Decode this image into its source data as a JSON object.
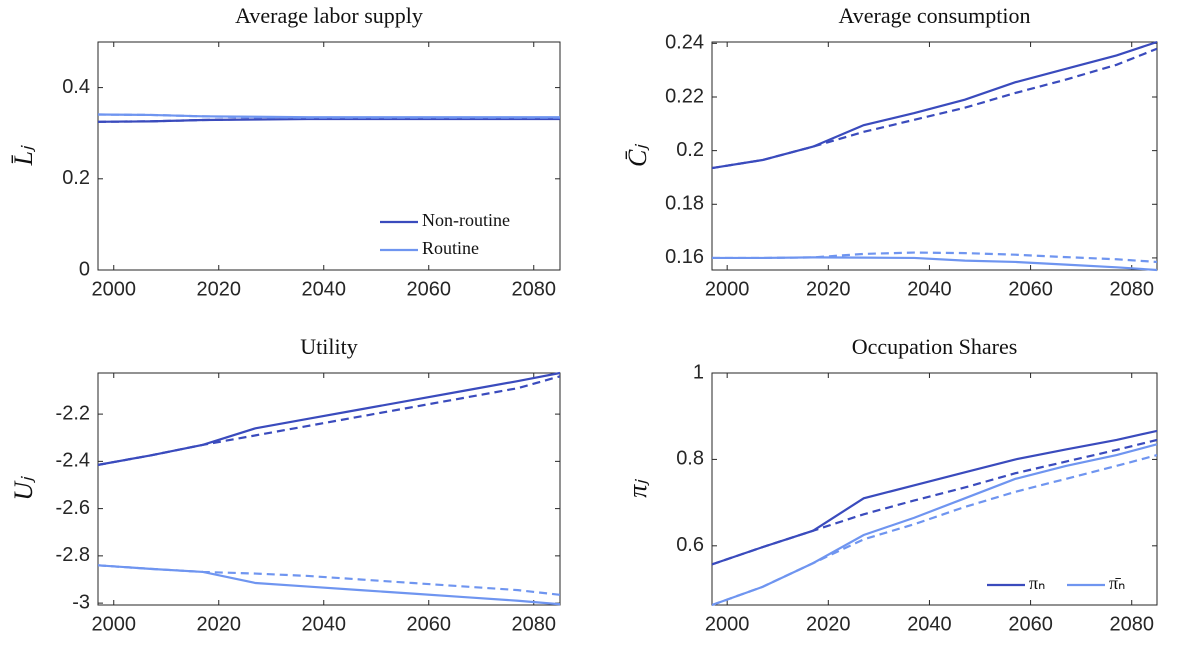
{
  "chart_data": [
    {
      "type": "line",
      "title": "Average labor supply",
      "ylabel": "L̄ⱼ",
      "x": [
        1997,
        2007,
        2017,
        2027,
        2037,
        2047,
        2057,
        2067,
        2077,
        2085
      ],
      "xlim": [
        1997,
        2085
      ],
      "xticks": [
        2000,
        2020,
        2040,
        2060,
        2080
      ],
      "ylim": [
        0,
        0.5
      ],
      "yticks": [
        0,
        0.2,
        0.4
      ],
      "legend": "lower right",
      "legend_orientation": "vertical",
      "series": [
        {
          "name": "Non-routine",
          "color": "#3a4bbd",
          "dashed": false,
          "values": [
            0.325,
            0.326,
            0.329,
            0.33,
            0.331,
            0.331,
            0.331,
            0.331,
            0.331,
            0.331
          ]
        },
        {
          "name": "Routine",
          "color": "#6f95f0",
          "dashed": false,
          "values": [
            0.341,
            0.34,
            0.337,
            0.336,
            0.335,
            0.335,
            0.335,
            0.335,
            0.335,
            0.335
          ]
        },
        {
          "color": "#3a4bbd",
          "dashed": true,
          "values": [
            0.325,
            0.326,
            0.329,
            0.331,
            0.332,
            0.332,
            0.332,
            0.332,
            0.332,
            0.332
          ]
        },
        {
          "color": "#6f95f0",
          "dashed": true,
          "values": [
            0.341,
            0.34,
            0.337,
            0.335,
            0.334,
            0.334,
            0.334,
            0.334,
            0.334,
            0.334
          ]
        }
      ]
    },
    {
      "type": "line",
      "title": "Average consumption",
      "ylabel": "C̄ⱼ",
      "x": [
        1997,
        2007,
        2017,
        2027,
        2037,
        2047,
        2057,
        2067,
        2077,
        2085
      ],
      "xlim": [
        1997,
        2085
      ],
      "xticks": [
        2000,
        2020,
        2040,
        2060,
        2080
      ],
      "ylim": [
        0.1555,
        0.2405
      ],
      "yticks": [
        0.16,
        0.18,
        0.2,
        0.22,
        0.24
      ],
      "series": [
        {
          "color": "#3a4bbd",
          "dashed": false,
          "values": [
            0.1935,
            0.1965,
            0.2015,
            0.2095,
            0.214,
            0.219,
            0.2255,
            0.2305,
            0.2355,
            0.2405
          ]
        },
        {
          "color": "#3a4bbd",
          "dashed": true,
          "values": [
            0.1935,
            0.1965,
            0.2015,
            0.207,
            0.2115,
            0.216,
            0.2215,
            0.2265,
            0.232,
            0.238
          ]
        },
        {
          "color": "#6f95f0",
          "dashed": false,
          "values": [
            0.16,
            0.16,
            0.1602,
            0.1601,
            0.16,
            0.159,
            0.1585,
            0.1575,
            0.1565,
            0.1555
          ]
        },
        {
          "color": "#6f95f0",
          "dashed": true,
          "values": [
            0.16,
            0.16,
            0.1602,
            0.1615,
            0.162,
            0.1618,
            0.1612,
            0.1603,
            0.1595,
            0.1585
          ]
        }
      ]
    },
    {
      "type": "line",
      "title": "Utility",
      "ylabel": "Uⱼ",
      "x": [
        1997,
        2007,
        2017,
        2027,
        2037,
        2047,
        2057,
        2067,
        2077,
        2085
      ],
      "xlim": [
        1997,
        2085
      ],
      "xticks": [
        2000,
        2020,
        2040,
        2060,
        2080
      ],
      "ylim": [
        -3.008,
        -2.026
      ],
      "yticks": [
        -3,
        -2.8,
        -2.6,
        -2.4,
        -2.2
      ],
      "series": [
        {
          "color": "#3a4bbd",
          "dashed": false,
          "values": [
            -2.415,
            -2.375,
            -2.33,
            -2.26,
            -2.22,
            -2.18,
            -2.14,
            -2.1,
            -2.06,
            -2.026
          ]
        },
        {
          "color": "#3a4bbd",
          "dashed": true,
          "values": [
            -2.415,
            -2.375,
            -2.33,
            -2.29,
            -2.25,
            -2.21,
            -2.17,
            -2.13,
            -2.09,
            -2.04
          ]
        },
        {
          "color": "#6f95f0",
          "dashed": false,
          "values": [
            -2.84,
            -2.855,
            -2.868,
            -2.915,
            -2.93,
            -2.945,
            -2.96,
            -2.975,
            -2.99,
            -3.005
          ]
        },
        {
          "color": "#6f95f0",
          "dashed": true,
          "values": [
            -2.84,
            -2.855,
            -2.868,
            -2.875,
            -2.885,
            -2.9,
            -2.915,
            -2.93,
            -2.945,
            -2.965
          ]
        }
      ]
    },
    {
      "type": "line",
      "title": "Occupation Shares",
      "ylabel": "πⱼ",
      "x": [
        1997,
        2007,
        2017,
        2027,
        2037,
        2047,
        2057,
        2067,
        2077,
        2085
      ],
      "xlim": [
        1997,
        2085
      ],
      "xticks": [
        2000,
        2020,
        2040,
        2060,
        2080
      ],
      "ylim": [
        0.463,
        1
      ],
      "yticks": [
        0.6,
        0.8,
        1
      ],
      "legend": "lower right",
      "legend_orientation": "horizontal",
      "series": [
        {
          "name": "πₙ",
          "color": "#3a4bbd",
          "dashed": false,
          "values": [
            0.557,
            0.597,
            0.635,
            0.71,
            0.74,
            0.77,
            0.8,
            0.823,
            0.845,
            0.866
          ]
        },
        {
          "name": "π̄ₙ",
          "color": "#6f95f0",
          "dashed": false,
          "values": [
            0.463,
            0.505,
            0.56,
            0.625,
            0.665,
            0.71,
            0.755,
            0.785,
            0.81,
            0.835
          ]
        },
        {
          "color": "#3a4bbd",
          "dashed": true,
          "values": [
            0.557,
            0.597,
            0.635,
            0.673,
            0.705,
            0.735,
            0.768,
            0.795,
            0.822,
            0.845
          ]
        },
        {
          "color": "#6f95f0",
          "dashed": true,
          "values": [
            0.463,
            0.505,
            0.56,
            0.615,
            0.65,
            0.69,
            0.725,
            0.755,
            0.785,
            0.81
          ]
        }
      ]
    }
  ]
}
